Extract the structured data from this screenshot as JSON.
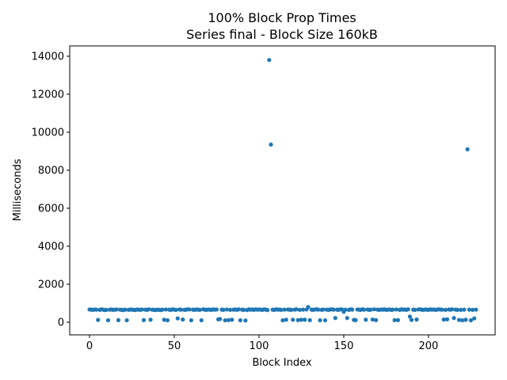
{
  "chart_data": {
    "type": "scatter",
    "title": "100% Block Prop Times",
    "subtitle": "Series final - Block Size 160kB",
    "xlabel": "Block Index",
    "ylabel": "Milliseconds",
    "color": "#1f77b4",
    "xlim": [
      -11.7,
      239.3
    ],
    "ylim": [
      -667,
      14542
    ],
    "xticks": [
      0,
      50,
      100,
      150,
      200
    ],
    "yticks": [
      0,
      2000,
      4000,
      6000,
      8000,
      10000,
      12000,
      14000
    ],
    "x": [
      0,
      1,
      2,
      3,
      4,
      5,
      6,
      7,
      8,
      9,
      10,
      11,
      12,
      13,
      14,
      15,
      16,
      17,
      18,
      19,
      20,
      21,
      22,
      23,
      24,
      25,
      26,
      27,
      28,
      29,
      30,
      31,
      32,
      33,
      34,
      35,
      36,
      37,
      38,
      39,
      40,
      41,
      42,
      43,
      44,
      45,
      46,
      47,
      48,
      49,
      50,
      51,
      52,
      53,
      54,
      55,
      56,
      57,
      58,
      59,
      60,
      61,
      62,
      63,
      64,
      65,
      66,
      67,
      68,
      69,
      70,
      71,
      72,
      73,
      74,
      75,
      76,
      77,
      78,
      79,
      80,
      81,
      82,
      83,
      84,
      85,
      86,
      87,
      88,
      89,
      90,
      91,
      92,
      93,
      94,
      95,
      96,
      97,
      98,
      99,
      100,
      101,
      102,
      103,
      104,
      105,
      106,
      107,
      108,
      109,
      110,
      111,
      112,
      113,
      114,
      115,
      116,
      117,
      118,
      119,
      120,
      121,
      122,
      123,
      124,
      125,
      126,
      127,
      128,
      129,
      130,
      131,
      132,
      133,
      134,
      135,
      136,
      137,
      138,
      139,
      140,
      141,
      142,
      143,
      144,
      145,
      146,
      147,
      148,
      149,
      150,
      151,
      152,
      153,
      154,
      155,
      156,
      157,
      158,
      159,
      160,
      161,
      162,
      163,
      164,
      165,
      166,
      167,
      168,
      169,
      170,
      171,
      172,
      173,
      174,
      175,
      176,
      177,
      178,
      179,
      180,
      181,
      182,
      183,
      184,
      185,
      186,
      187,
      188,
      189,
      190,
      191,
      192,
      193,
      194,
      195,
      196,
      197,
      198,
      199,
      200,
      201,
      202,
      203,
      204,
      205,
      206,
      207,
      208,
      209,
      210,
      211,
      212,
      213,
      214,
      215,
      216,
      217,
      218,
      219,
      220,
      221,
      222,
      223,
      224,
      225,
      226,
      227,
      228
    ],
    "values": [
      670,
      660,
      650,
      670,
      660,
      120,
      650,
      680,
      660,
      640,
      650,
      100,
      660,
      670,
      650,
      660,
      670,
      110,
      660,
      650,
      640,
      660,
      100,
      650,
      670,
      660,
      650,
      640,
      670,
      660,
      650,
      670,
      110,
      660,
      650,
      680,
      130,
      660,
      650,
      640,
      660,
      650,
      640,
      660,
      130,
      670,
      100,
      660,
      650,
      680,
      660,
      650,
      200,
      670,
      660,
      140,
      650,
      660,
      680,
      670,
      100,
      660,
      650,
      670,
      660,
      650,
      100,
      680,
      660,
      650,
      670,
      660,
      650,
      680,
      660,
      670,
      150,
      170,
      660,
      650,
      100,
      670,
      110,
      650,
      130,
      660,
      670,
      650,
      680,
      100,
      660,
      650,
      90,
      640,
      680,
      660,
      670,
      650,
      680,
      660,
      670,
      660,
      650,
      680,
      660,
      640,
      13800,
      9350,
      660,
      650,
      680,
      660,
      670,
      650,
      100,
      660,
      130,
      670,
      660,
      650,
      130,
      660,
      680,
      110,
      650,
      130,
      660,
      130,
      670,
      800,
      110,
      660,
      650,
      670,
      680,
      660,
      100,
      650,
      670,
      100,
      660,
      650,
      670,
      680,
      660,
      220,
      660,
      650,
      680,
      670,
      550,
      660,
      220,
      650,
      680,
      660,
      120,
      110,
      670,
      660,
      650,
      680,
      660,
      130,
      670,
      650,
      660,
      140,
      680,
      110,
      660,
      650,
      670,
      660,
      680,
      650,
      660,
      670,
      650,
      660,
      110,
      670,
      110,
      650,
      680,
      660,
      670,
      650,
      680,
      300,
      120,
      660,
      650,
      140,
      670,
      680,
      660,
      650,
      670,
      660,
      650,
      680,
      660,
      670,
      650,
      660,
      680,
      670,
      660,
      140,
      650,
      150,
      670,
      660,
      680,
      220,
      660,
      650,
      120,
      650,
      100,
      660,
      130,
      9100,
      660,
      100,
      650,
      200,
      660
    ]
  }
}
